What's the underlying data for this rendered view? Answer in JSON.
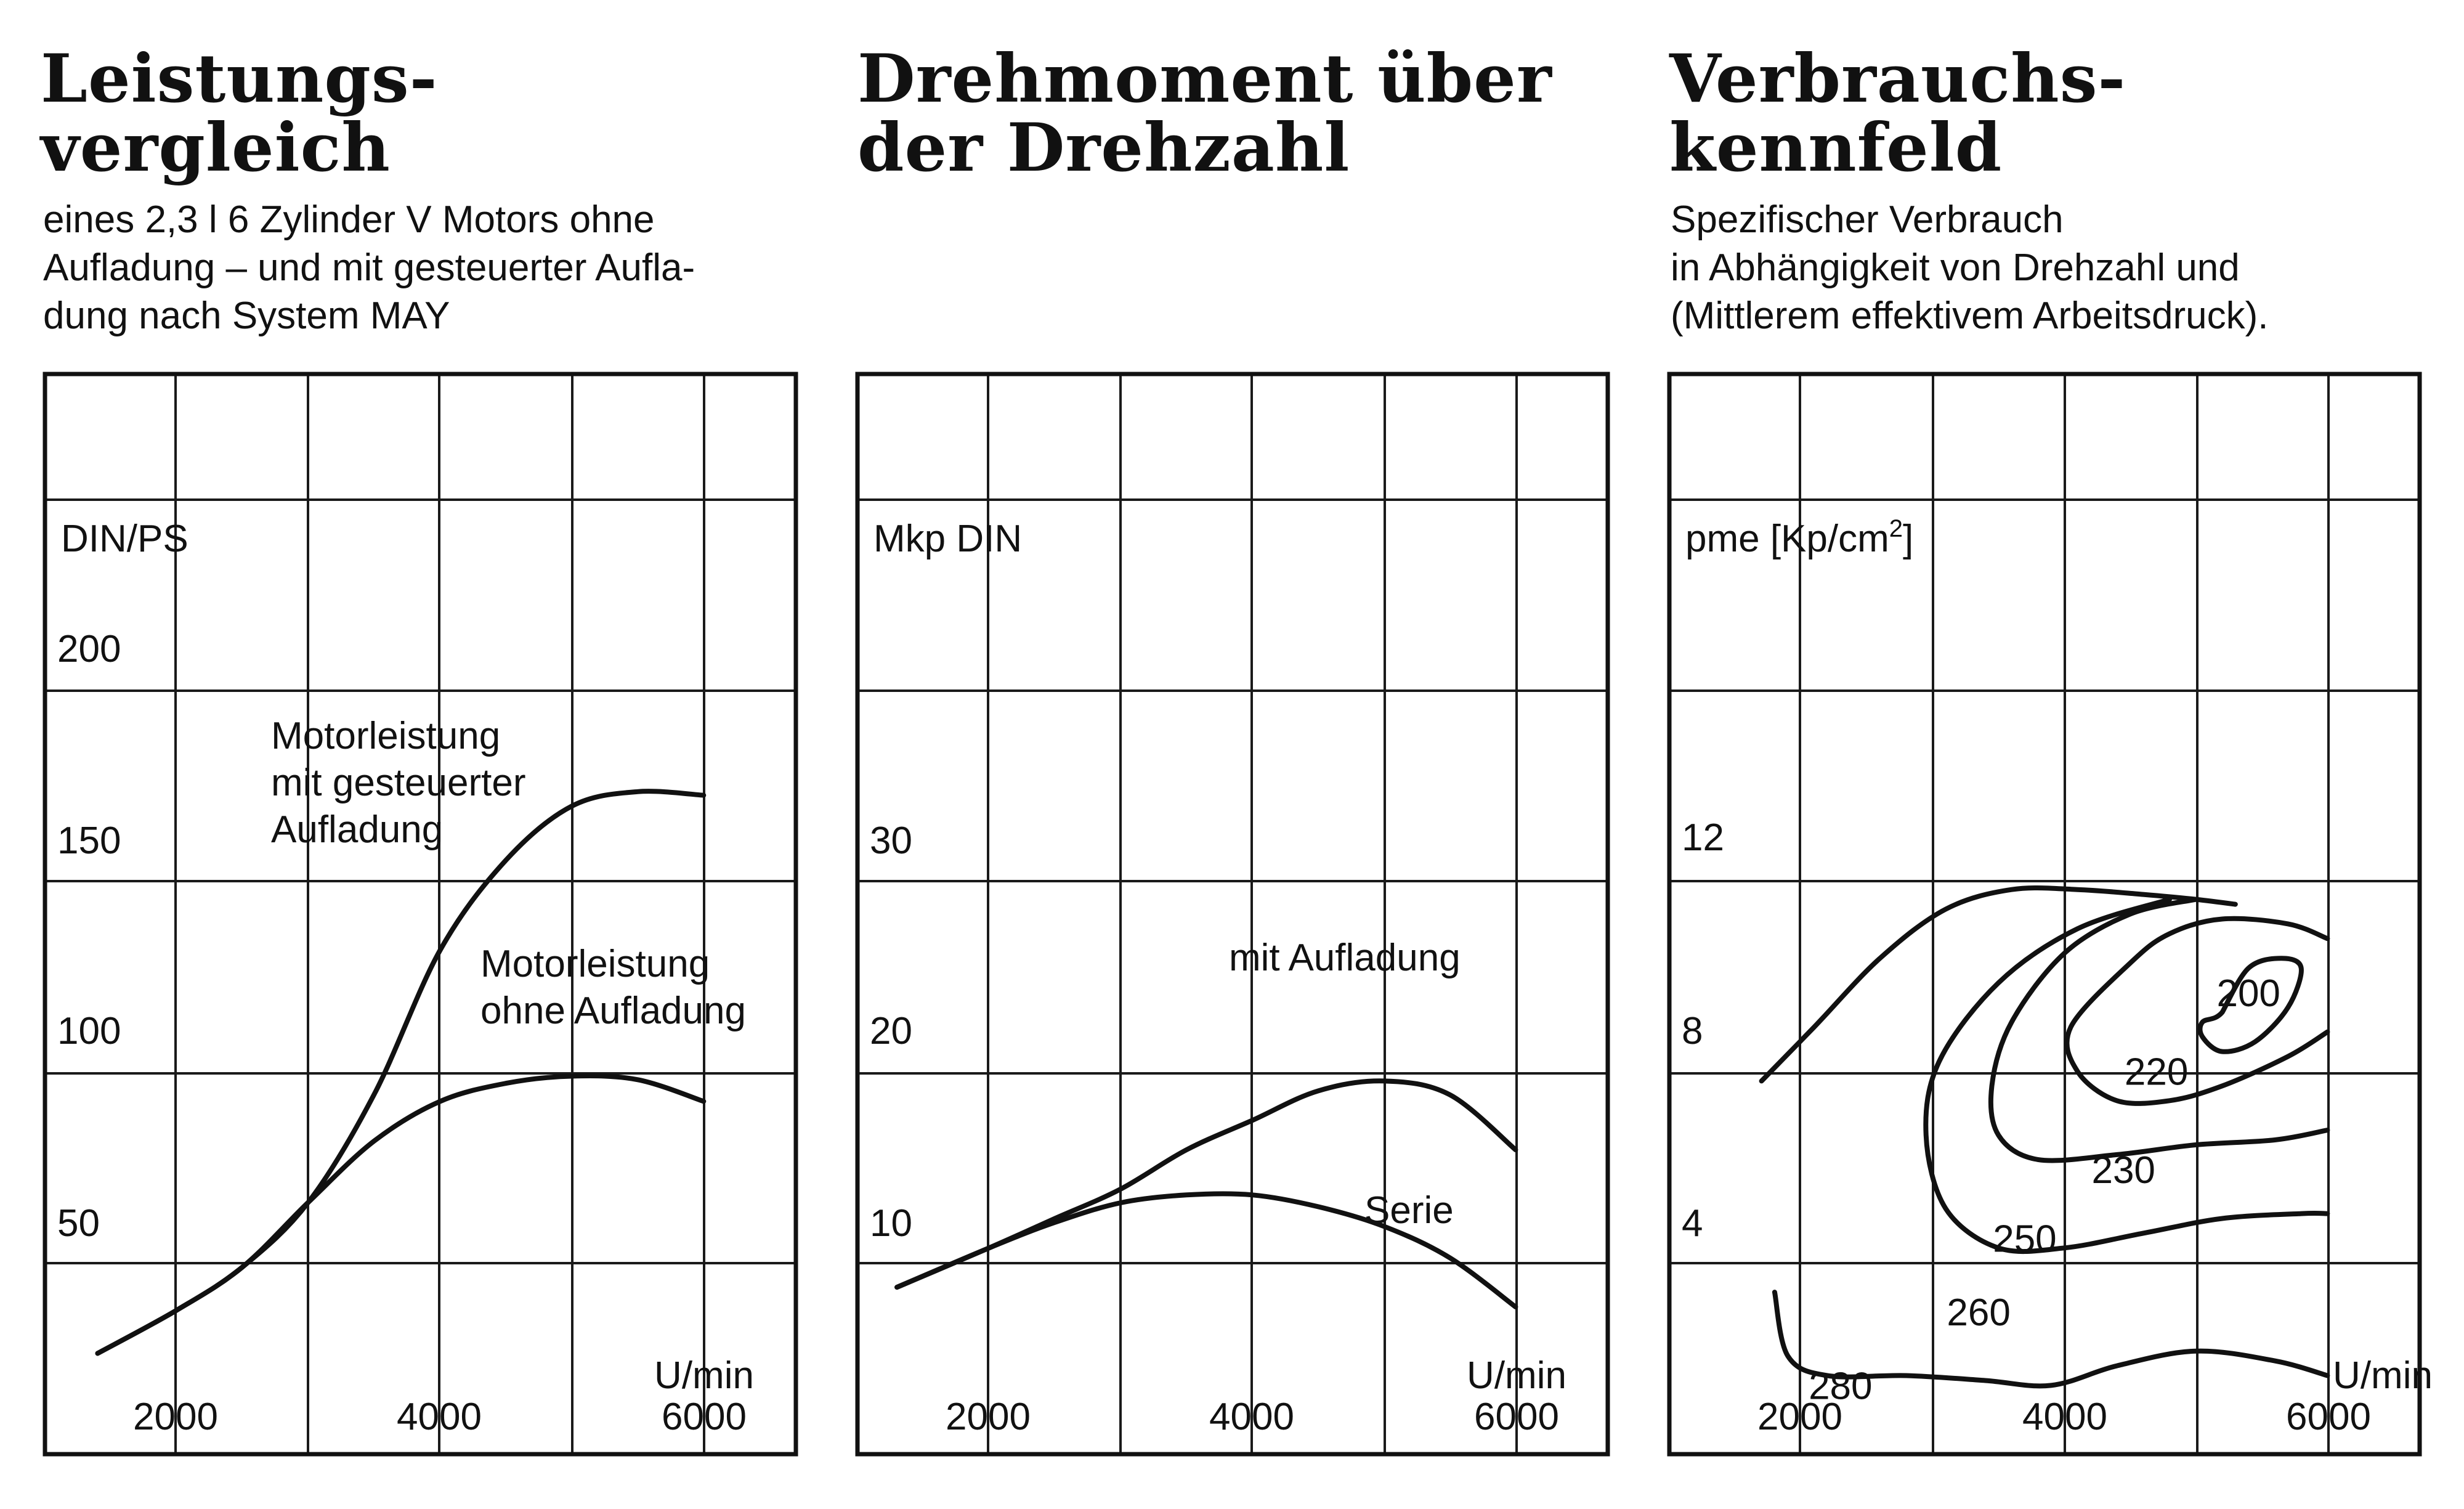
{
  "panels": [
    {
      "title_lines": [
        "Leistungs-",
        "vergleich"
      ],
      "subtitle_lines": [
        "eines 2,3 l 6 Zylinder V Motors ohne",
        "Aufladung – und mit gesteuerter Aufla-",
        "dung nach System MAY"
      ]
    },
    {
      "title_lines": [
        "Drehmoment über",
        "der Drehzahl"
      ],
      "subtitle_lines": []
    },
    {
      "title_lines": [
        "Verbrauchs-",
        "kennfeld"
      ],
      "subtitle_lines": [
        "Spezifischer Verbrauch",
        "in Abhängigkeit von Drehzahl und",
        "(Mittlerem effektivem Arbeitsdruck)."
      ]
    }
  ],
  "chart_data": [
    {
      "type": "line",
      "ylabel": "DIN/PS",
      "xlabel": "U/min",
      "x_ticks": [
        "2000",
        "4000",
        "6000"
      ],
      "y_ticks": [
        "200",
        "150",
        "100",
        "50"
      ],
      "xlim": [
        1000,
        6700
      ],
      "ylim": [
        0,
        300
      ],
      "grid": true,
      "series": [
        {
          "name": "Motorleistung mit gesteuerter Aufladung",
          "label_lines": [
            "Motorleistung",
            "mit gesteuerter",
            "Aufladung"
          ],
          "x": [
            1400,
            2000,
            2500,
            3000,
            3500,
            4000,
            4500,
            5000,
            5500,
            6000
          ],
          "y": [
            28,
            40,
            52,
            70,
            100,
            140,
            165,
            180,
            184,
            183
          ]
        },
        {
          "name": "Motorleistung ohne Aufladung",
          "label_lines": [
            "Motorleistung",
            "ohne Aufladung"
          ],
          "x": [
            1400,
            2000,
            2500,
            3000,
            3500,
            4000,
            4500,
            5000,
            5500,
            6000
          ],
          "y": [
            28,
            40,
            52,
            70,
            87,
            98,
            103,
            105,
            104,
            98
          ]
        }
      ]
    },
    {
      "type": "line",
      "ylabel": "Mkp DIN",
      "xlabel": "U/min",
      "x_ticks": [
        "2000",
        "4000",
        "6000"
      ],
      "y_ticks": [
        "30",
        "20",
        "10"
      ],
      "xlim": [
        1000,
        6700
      ],
      "ylim": [
        5,
        60
      ],
      "grid": true,
      "series": [
        {
          "name": "mit Aufladung",
          "label_lines": [
            "mit Aufladung"
          ],
          "x": [
            1300,
            2000,
            2500,
            3000,
            3500,
            4000,
            4500,
            5000,
            5500,
            6000
          ],
          "y": [
            13.5,
            15.5,
            17,
            18.5,
            20.5,
            22,
            23.5,
            24,
            23.3,
            20.5
          ]
        },
        {
          "name": "Serie",
          "label_lines": [
            "Serie"
          ],
          "x": [
            1300,
            2000,
            2500,
            3000,
            3500,
            4000,
            4500,
            5000,
            5500,
            6000
          ],
          "y": [
            13.5,
            15.5,
            16.8,
            17.8,
            18.2,
            18.2,
            17.6,
            16.6,
            15,
            12.5
          ]
        }
      ]
    },
    {
      "type": "line",
      "ylabel": "pme [Kp/cm",
      "ylabel_sup": "2",
      "ylabel_close": "]",
      "xlabel": "U/min",
      "x_ticks": [
        "2000",
        "4000",
        "6000"
      ],
      "y_ticks": [
        "12",
        "8",
        "4"
      ],
      "xlim": [
        1000,
        6700
      ],
      "ylim": [
        0,
        22
      ],
      "grid": true,
      "series": [
        {
          "name": "200",
          "closed": true,
          "label_pos": [
            5400,
            9.4
          ],
          "x": [
            5200,
            5400,
            5650,
            5800,
            5700,
            5450,
            5200,
            5050,
            5050
          ],
          "y": [
            9,
            9.9,
            10.1,
            9.9,
            9.1,
            8.4,
            8.2,
            8.5,
            8.8
          ]
        },
        {
          "name": "220",
          "closed": false,
          "label_pos": [
            4700,
            7.8
          ],
          "x": [
            6000,
            5700,
            5200,
            4800,
            4500,
            4050,
            4100,
            4400,
            4800,
            5200,
            5700,
            6000
          ],
          "y": [
            10.5,
            10.8,
            10.9,
            10.6,
            10,
            8.7,
            7.8,
            7.2,
            7.2,
            7.5,
            8.1,
            8.6
          ]
        },
        {
          "name": "230",
          "closed": false,
          "label_pos": [
            4450,
            5.8
          ],
          "x": [
            5000,
            4500,
            4000,
            3600,
            3450,
            3500,
            3800,
            4400,
            5000,
            5600,
            6000
          ],
          "y": [
            11.3,
            11,
            10.2,
            8.8,
            7.5,
            6.5,
            6,
            6.1,
            6.3,
            6.4,
            6.6
          ]
        },
        {
          "name": "250",
          "closed": false,
          "label_pos": [
            3700,
            4.4
          ],
          "x": [
            4800,
            4100,
            3500,
            3050,
            2950,
            3100,
            3500,
            4000,
            4600,
            5200,
            5800,
            6000
          ],
          "y": [
            11.3,
            10.7,
            9.6,
            8,
            6.5,
            5,
            4.2,
            4.2,
            4.5,
            4.8,
            4.9,
            4.9
          ]
        },
        {
          "name": "260",
          "closed": false,
          "label_pos": [
            3350,
            2.9
          ],
          "x": [
            1700,
            2100,
            2600,
            3100,
            3600,
            4100,
            4600,
            5000,
            5300
          ],
          "y": [
            7.6,
            8.7,
            10.1,
            11.1,
            11.5,
            11.5,
            11.4,
            11.3,
            11.2
          ]
        },
        {
          "name": "280",
          "closed": false,
          "label_pos": [
            2300,
            1.4
          ],
          "x": [
            1800,
            1900,
            2200,
            2800,
            3400,
            3900,
            4400,
            5000,
            5600,
            6000
          ],
          "y": [
            3.3,
            2,
            1.6,
            1.6,
            1.5,
            1.4,
            1.8,
            2.1,
            1.9,
            1.6
          ]
        }
      ]
    }
  ]
}
